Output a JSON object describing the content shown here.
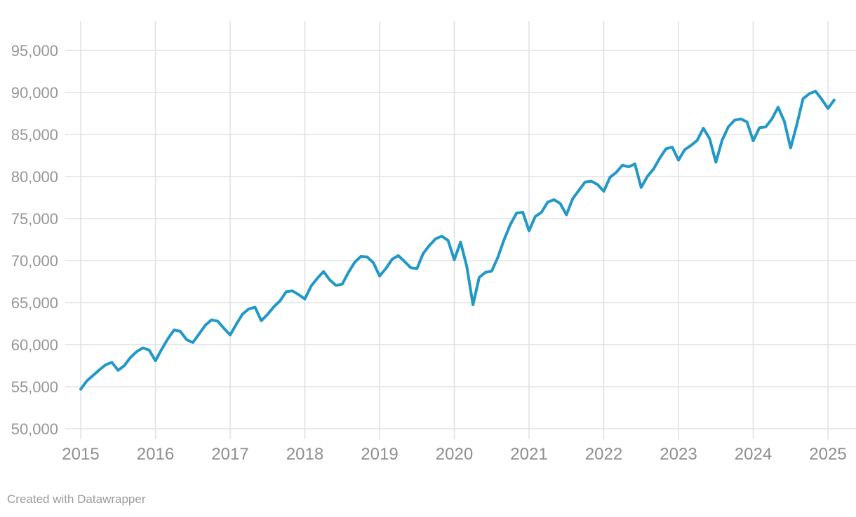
{
  "page": {
    "background": "#ffffff"
  },
  "footer": {
    "credit": "Created with Datawrapper"
  },
  "chart_data": {
    "type": "line",
    "title": "",
    "xlabel": "",
    "ylabel": "",
    "legend_position": "none",
    "grid": "on",
    "x_start_month": "2015-01",
    "x_end_month": "2025-02",
    "x_ticks": [
      {
        "year": 2015,
        "label": "2015"
      },
      {
        "year": 2016,
        "label": "2016"
      },
      {
        "year": 2017,
        "label": "2017"
      },
      {
        "year": 2018,
        "label": "2018"
      },
      {
        "year": 2019,
        "label": "2019"
      },
      {
        "year": 2020,
        "label": "2020"
      },
      {
        "year": 2021,
        "label": "2021"
      },
      {
        "year": 2022,
        "label": "2022"
      },
      {
        "year": 2023,
        "label": "2023"
      },
      {
        "year": 2024,
        "label": "2024"
      },
      {
        "year": 2025,
        "label": "2025"
      }
    ],
    "y_ticks": [
      {
        "value": 50000,
        "label": "50,000"
      },
      {
        "value": 55000,
        "label": "55,000"
      },
      {
        "value": 60000,
        "label": "60,000"
      },
      {
        "value": 65000,
        "label": "65,000"
      },
      {
        "value": 70000,
        "label": "70,000"
      },
      {
        "value": 75000,
        "label": "75,000"
      },
      {
        "value": 80000,
        "label": "80,000"
      },
      {
        "value": 85000,
        "label": "85,000"
      },
      {
        "value": 90000,
        "label": "90,000"
      },
      {
        "value": 95000,
        "label": "95,000"
      }
    ],
    "ylim": [
      50000,
      95000
    ],
    "xlim_years": [
      2015,
      2025.17
    ],
    "line_color": "#2198c7",
    "grid_color": "#e2e2e2",
    "ytick_label_color": "#969696",
    "xtick_label_color": "#8f8f8f",
    "series": [
      {
        "name": "monthly value",
        "monthly_values": [
          54700,
          55700,
          56350,
          57000,
          57600,
          57900,
          56950,
          57500,
          58480,
          59180,
          59620,
          59350,
          58080,
          59450,
          60700,
          61750,
          61580,
          60600,
          60250,
          61250,
          62300,
          62950,
          62800,
          61950,
          61150,
          62450,
          63650,
          64250,
          64450,
          62850,
          63600,
          64480,
          65200,
          66300,
          66400,
          65950,
          65430,
          66970,
          67900,
          68700,
          67700,
          67050,
          67200,
          68600,
          69800,
          70500,
          70430,
          69750,
          68170,
          69050,
          70150,
          70600,
          69900,
          69150,
          69050,
          70850,
          71800,
          72600,
          72900,
          72400,
          70100,
          72200,
          69300,
          64750,
          68000,
          68600,
          68750,
          70400,
          72500,
          74300,
          75650,
          75750,
          73550,
          75250,
          75750,
          76950,
          77250,
          76800,
          75450,
          77350,
          78350,
          79350,
          79450,
          79050,
          78250,
          79900,
          80500,
          81350,
          81150,
          81500,
          78700,
          80000,
          80900,
          82200,
          83300,
          83500,
          81950,
          83200,
          83700,
          84300,
          85750,
          84500,
          81700,
          84300,
          85900,
          86700,
          86850,
          86500,
          84250,
          85800,
          85900,
          86850,
          88250,
          86550,
          83400,
          86150,
          89250,
          89850,
          90150,
          89200,
          88100,
          89100
        ]
      }
    ]
  }
}
